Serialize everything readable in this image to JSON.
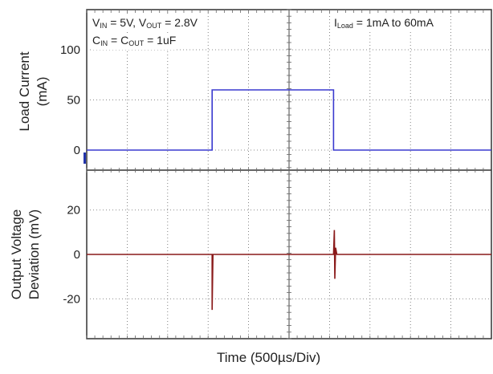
{
  "chart_data": [
    {
      "type": "line",
      "panel": "top",
      "ylabel_line1": "Load Current",
      "ylabel_line2": "(mA)",
      "ylim": [
        -20,
        140
      ],
      "yticks": [
        0,
        50,
        100
      ],
      "ytick_labels": [
        "0",
        "50",
        "100"
      ],
      "series": [
        {
          "color": "#3a3acf",
          "x": [
            0,
            3.1,
            3.1,
            6.1,
            6.1,
            10
          ],
          "values": [
            0,
            0,
            60,
            60,
            0,
            0
          ]
        }
      ]
    },
    {
      "type": "line",
      "panel": "bottom",
      "ylabel_line1": "Output Voltage",
      "ylabel_line2": "Deviation (mV)",
      "ylim": [
        -38,
        38
      ],
      "yticks": [
        -20,
        0,
        20
      ],
      "ytick_labels": [
        "-20",
        "0",
        "20"
      ],
      "series": [
        {
          "color": "#8a1a1a",
          "x": [
            0,
            3.1,
            3.1,
            3.12,
            3.14,
            6.1,
            6.12,
            6.13,
            6.15,
            6.18,
            10
          ],
          "values": [
            0,
            0,
            -25,
            0,
            0,
            0,
            11,
            -11,
            3,
            0,
            0
          ]
        }
      ]
    }
  ],
  "x_axis": {
    "label": "Time  (500µs/Div)",
    "divisions": 10
  },
  "annotations": {
    "line1": {
      "v1": "V",
      "v1_sub": "IN",
      "v1_rest": " = 5V, V",
      "v2_sub": "OUT",
      "v2_rest": " = 2.8V"
    },
    "line2": {
      "c1": "C",
      "c1_sub": "IN",
      "c1_rest": " = C",
      "c2_sub": "OUT",
      "c2_rest": " = 1uF"
    },
    "load": {
      "i": "I",
      "i_sub": "Load",
      "i_rest": " = 1mA to 60mA"
    }
  },
  "colors": {
    "grid": "#666666",
    "frame": "#333333"
  }
}
